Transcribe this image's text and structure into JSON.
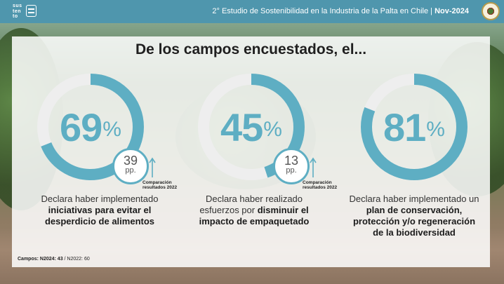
{
  "header": {
    "logo_text": "sus\nten\nto",
    "title_plain": "2° Estudio de Sostenibilidad en la Industria de la Palta en Chile | ",
    "title_bold": "Nov-2024"
  },
  "heading": "De los campos encuestados, el...",
  "stats": [
    {
      "value": "69",
      "percent_sign": "%",
      "fraction": 0.69,
      "comparison_value": "39",
      "comparison_unit": "pp.",
      "comparison_label": "Comparación resultados 2022",
      "desc_plain": "Declara haber implementado ",
      "desc_bold": "iniciativas para evitar el desperdicio de alimentos",
      "desc_tail": ""
    },
    {
      "value": "45",
      "percent_sign": "%",
      "fraction": 0.45,
      "comparison_value": "13",
      "comparison_unit": "pp.",
      "comparison_label": "Comparación resultados 2022",
      "desc_plain": "Declara haber realizado esfuerzos por ",
      "desc_bold": "disminuir el impacto de empaquetado",
      "desc_tail": ""
    },
    {
      "value": "81",
      "percent_sign": "%",
      "fraction": 0.81,
      "desc_plain": "Declara haber implementado un ",
      "desc_bold": "plan de conservación, protección y/o regeneración de la biodiversidad",
      "desc_tail": ""
    }
  ],
  "footer": {
    "bold": "Campos: N2024: 43",
    "plain": " / N2022: 60"
  },
  "colors": {
    "accent": "#5eaec3",
    "track": "#eeeeee",
    "header": "#4f96ad"
  }
}
